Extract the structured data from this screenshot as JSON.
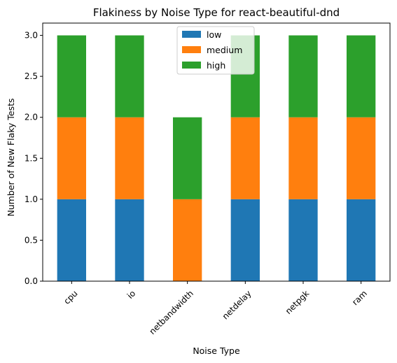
{
  "chart_data": {
    "type": "bar",
    "stacked": true,
    "title": "Flakiness by Noise Type for react-beautiful-dnd",
    "xlabel": "Noise Type",
    "ylabel": "Number of New Flaky Tests",
    "categories": [
      "cpu",
      "io",
      "netbandwidth",
      "netdelay",
      "netpgk",
      "ram"
    ],
    "series": [
      {
        "name": "low",
        "color": "#1f77b4",
        "values": [
          1,
          1,
          0,
          1,
          1,
          1
        ]
      },
      {
        "name": "medium",
        "color": "#ff7f0e",
        "values": [
          1,
          1,
          1,
          1,
          1,
          1
        ]
      },
      {
        "name": "high",
        "color": "#2ca02c",
        "values": [
          1,
          1,
          1,
          1,
          1,
          1
        ]
      }
    ],
    "ylim": [
      0,
      3.15
    ],
    "yticks": [
      0.0,
      0.5,
      1.0,
      1.5,
      2.0,
      2.5,
      3.0
    ],
    "ytick_labels": [
      "0.0",
      "0.5",
      "1.0",
      "1.5",
      "2.0",
      "2.5",
      "3.0"
    ],
    "grid": false,
    "legend_position": "top-center",
    "xtick_rotation": 45
  }
}
